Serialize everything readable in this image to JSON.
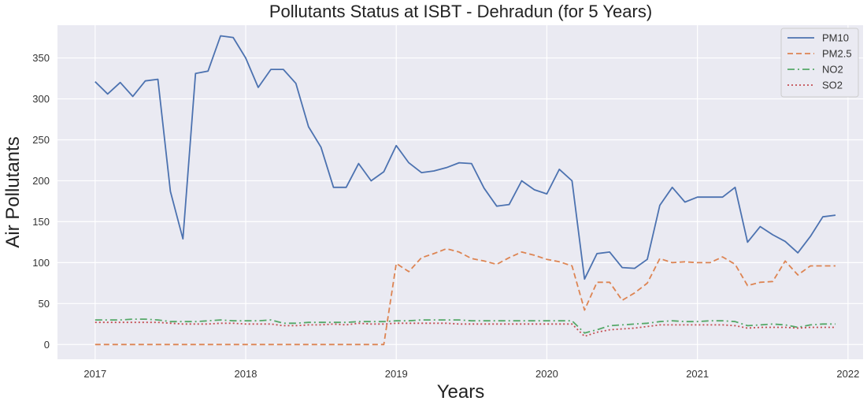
{
  "chart_data": {
    "type": "line",
    "title": "Pollutants Status at ISBT - Dehradun   (for 5 Years)",
    "xlabel": "Years",
    "ylabel": "Air Pollutants",
    "xlim": [
      2016.75,
      2022.1
    ],
    "ylim": [
      -18,
      390
    ],
    "x_ticks": [
      2017,
      2018,
      2019,
      2020,
      2021,
      2022
    ],
    "x_tick_labels": [
      "2017",
      "2018",
      "2019",
      "2020",
      "2021",
      "2022"
    ],
    "y_ticks": [
      0,
      50,
      100,
      150,
      200,
      250,
      300,
      350
    ],
    "y_tick_labels": [
      "0",
      "50",
      "100",
      "150",
      "200",
      "250",
      "300",
      "350"
    ],
    "grid": true,
    "legend_position": "top-right",
    "background_color": "#eaeaf2",
    "grid_color": "#ffffff",
    "x": [
      2017.0,
      2017.083,
      2017.167,
      2017.25,
      2017.333,
      2017.417,
      2017.5,
      2017.583,
      2017.667,
      2017.75,
      2017.833,
      2017.917,
      2018.0,
      2018.083,
      2018.167,
      2018.25,
      2018.333,
      2018.417,
      2018.5,
      2018.583,
      2018.667,
      2018.75,
      2018.833,
      2018.917,
      2019.0,
      2019.083,
      2019.167,
      2019.25,
      2019.333,
      2019.417,
      2019.5,
      2019.583,
      2019.667,
      2019.75,
      2019.833,
      2019.917,
      2020.0,
      2020.083,
      2020.167,
      2020.25,
      2020.333,
      2020.417,
      2020.5,
      2020.583,
      2020.667,
      2020.75,
      2020.833,
      2020.917,
      2021.0,
      2021.083,
      2021.167,
      2021.25,
      2021.333,
      2021.417,
      2021.5,
      2021.583,
      2021.667,
      2021.75,
      2021.833,
      2021.917
    ],
    "series": [
      {
        "name": "PM10",
        "color": "#4c72b0",
        "dash": "solid",
        "values": [
          321,
          306,
          320,
          303,
          322,
          324,
          187,
          129,
          331,
          334,
          377,
          375,
          350,
          314,
          336,
          336,
          319,
          266,
          241,
          192,
          192,
          221,
          200,
          211,
          243,
          222,
          210,
          212,
          216,
          222,
          221,
          191,
          169,
          171,
          200,
          189,
          184,
          214,
          200,
          80,
          111,
          113,
          94,
          93,
          104,
          170,
          192,
          174,
          180,
          180,
          180,
          192,
          125,
          144,
          134,
          126,
          112,
          132,
          156,
          158
        ]
      },
      {
        "name": "PM2.5",
        "color": "#dd8452",
        "dash": "dashed",
        "values": [
          0,
          0,
          0,
          0,
          0,
          0,
          0,
          0,
          0,
          0,
          0,
          0,
          0,
          0,
          0,
          0,
          0,
          0,
          0,
          0,
          0,
          0,
          0,
          0,
          99,
          89,
          106,
          111,
          117,
          113,
          105,
          102,
          98,
          106,
          113,
          109,
          104,
          101,
          96,
          42,
          76,
          76,
          54,
          63,
          75,
          105,
          100,
          101,
          100,
          100,
          107,
          98,
          72,
          76,
          77,
          102,
          85,
          96,
          96,
          96
        ]
      },
      {
        "name": "NO2",
        "color": "#55a868",
        "dash": "dashdot",
        "values": [
          30,
          30,
          30,
          31,
          31,
          30,
          28,
          28,
          28,
          29,
          30,
          29,
          29,
          29,
          30,
          26,
          26,
          27,
          27,
          27,
          27,
          28,
          28,
          28,
          29,
          29,
          30,
          30,
          30,
          30,
          29,
          29,
          29,
          29,
          29,
          29,
          29,
          29,
          29,
          14,
          18,
          23,
          24,
          25,
          26,
          28,
          29,
          28,
          28,
          29,
          29,
          28,
          23,
          24,
          25,
          24,
          21,
          24,
          25,
          25
        ]
      },
      {
        "name": "SO2",
        "color": "#c44e52",
        "dash": "dotted",
        "values": [
          27,
          27,
          27,
          27,
          27,
          27,
          26,
          25,
          25,
          25,
          26,
          26,
          25,
          25,
          25,
          23,
          23,
          24,
          24,
          25,
          24,
          26,
          25,
          25,
          26,
          26,
          26,
          26,
          26,
          25,
          25,
          25,
          25,
          25,
          25,
          25,
          25,
          25,
          25,
          10,
          15,
          18,
          19,
          20,
          22,
          24,
          24,
          24,
          24,
          24,
          24,
          23,
          20,
          21,
          21,
          21,
          20,
          21,
          21,
          21
        ]
      }
    ]
  }
}
